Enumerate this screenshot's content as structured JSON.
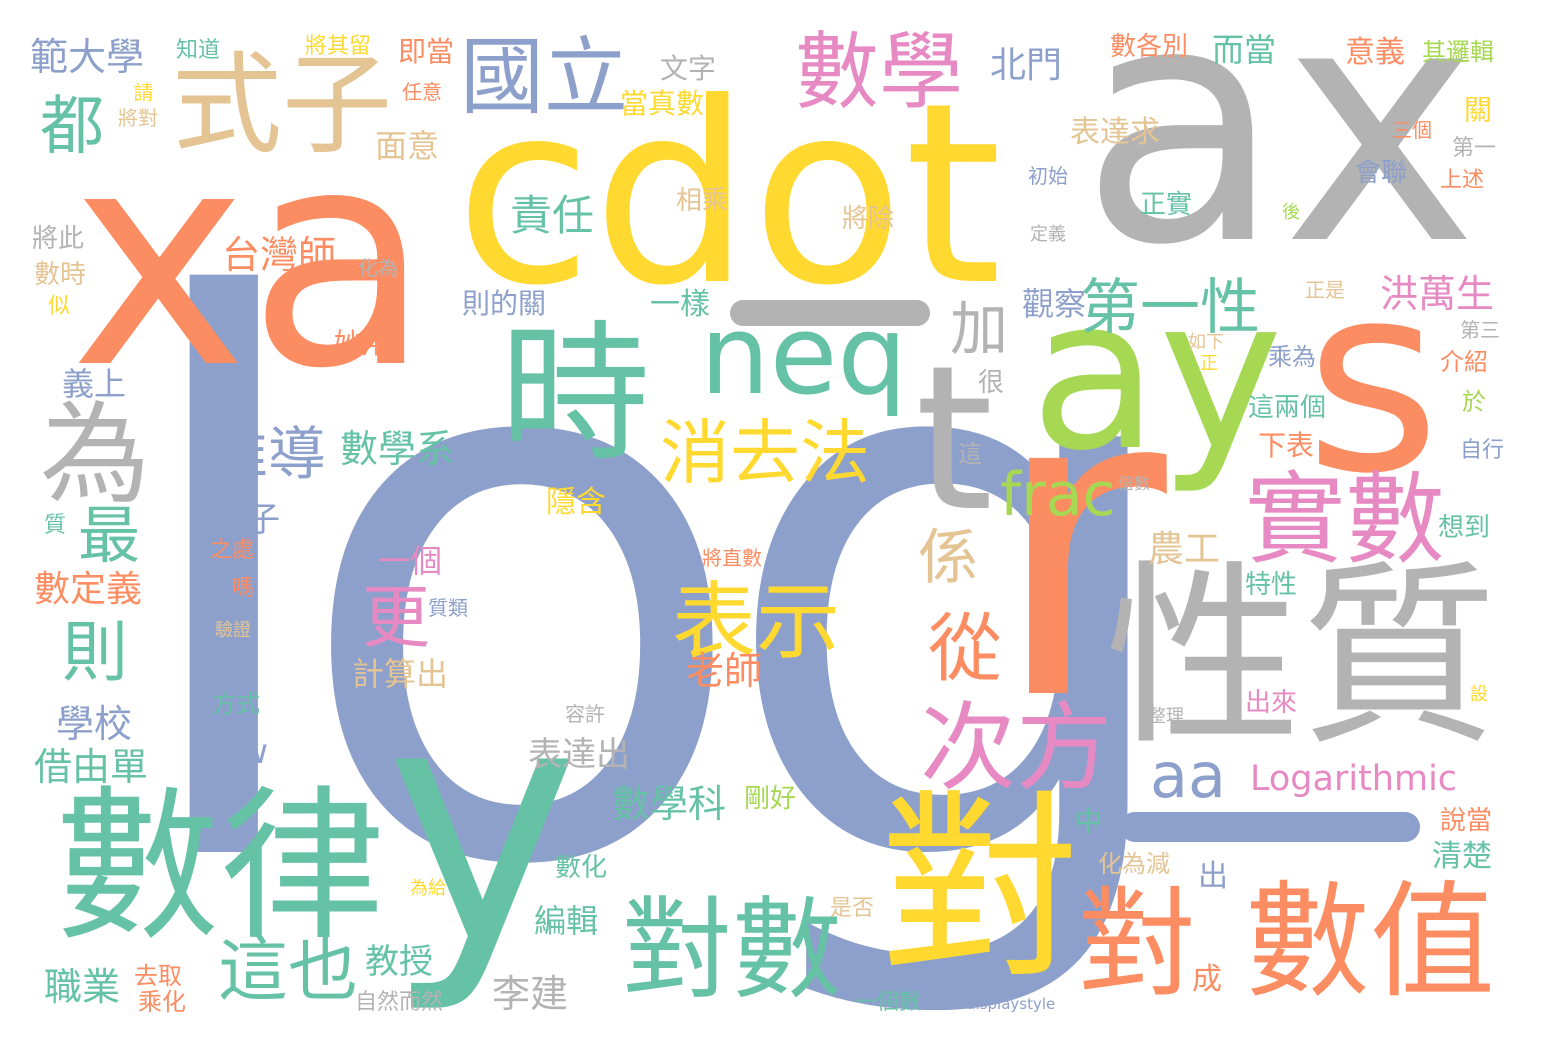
{
  "words": {
    "log": "log",
    "ax": "ax",
    "cdot": "cdot",
    "xa": "xa",
    "y": "y",
    "r": "r",
    "s": "s",
    "ay": "ay",
    "t": "t",
    "shuxingzhi": "性質",
    "shuxuelu": "數律",
    "dui_big": "對",
    "duishu": "對數",
    "dui2": "對",
    "shuzhi": "數值",
    "shi": "時",
    "shizi": "式子",
    "guoli": "國立",
    "shuxue": "數學",
    "neq": "neq",
    "wei": "為",
    "shishu": "實數",
    "cifang": "次方",
    "biaoshi": "表示",
    "xiaoqufa": "消去法",
    "diyixing": "第一性",
    "frac": "frac",
    "aa": "aa",
    "logarithmic": "Logarithmic",
    "zhe_ye": "這也",
    "tuidao": "推導",
    "geng": "更",
    "zui": "最",
    "ze": "則",
    "dou": "都",
    "cong": "從",
    "xi": "係",
    "jia": "加",
    "zeren": "責任",
    "taiwanshi": "台灣師",
    "shuxuexi": "數學系",
    "shuxueke": "數學科",
    "fandaxue": "範大學",
    "xuexiao": "學校",
    "jieyoudan": "借由單",
    "zhiye": "職業",
    "shudingyi": "數定義",
    "yishang": "義上",
    "liezi": "例子",
    "law": "law",
    "yige": "一個",
    "jisuanchu": "計算出",
    "laoshi": "老師",
    "biaodachu": "表達出",
    "jiaoshou": "教授",
    "lijian": "李建",
    "ziranerran": "自然而然",
    "yigeshu": "一個數",
    "bianji": "編輯",
    "shuhua": "數化",
    "nonggong": "農工",
    "yinhan": "隱含",
    "hongwansheng": "洪萬生",
    "guancha": "觀察",
    "yiyang": "一樣",
    "zedeguan": "則的關",
    "biaodaqiu": "表達求",
    "beimen": "北門",
    "erdang": "而當",
    "shugebie": "數各別",
    "yiyi": "意義",
    "qiluoji": "其邏輯",
    "wenzi": "文字",
    "dangzhenshu": "當真數",
    "mianyi": "面意",
    "jiangqiliu": "將其留",
    "jidang": "即當",
    "zhidao": "知道",
    "qing": "請",
    "jiangdui": "將對",
    "renyi": "任意",
    "xiangcheng": "相乘",
    "jiangchu": "將除",
    "chushi": "初始",
    "dingyi": "定義",
    "huilian": "會聯",
    "zhengshi": "正實",
    "hou": "後",
    "sange": "三個",
    "guan": "關",
    "diyi": "第一",
    "shangshu": "上述",
    "zhengshi2": "正是",
    "ruxia": "如下",
    "zheng": "正",
    "disan": "第三",
    "chengwei": "乘為",
    "jieshao": "介紹",
    "zheliangge": "這兩個",
    "yu": "於",
    "xiabiao": "下表",
    "zixing": "自行",
    "beishu": "倍數",
    "xiangdao": "想到",
    "texing": "特性",
    "chulai": "出來",
    "she": "設",
    "zhengli": "整理",
    "rongxu": "容許",
    "zhong": "中",
    "chu": "出",
    "huaweijian": "化為減",
    "lianggeshu": "兩個數",
    "qingchu": "清楚",
    "shuodang": "說當",
    "cheng": "成",
    "gangghao": "剛好",
    "shifou": "是否",
    "weigei": "為給",
    "displaystyle": "displaystyle",
    "quqiu": "去取",
    "chenghua": "乘化",
    "fangshi": "方式",
    "yanzheng": "驗證",
    "ma": "嗎",
    "zhichu": "之處",
    "zhi": "質",
    "zhilei": "質類",
    "jiangzhishu": "將直數",
    "henhen": "很",
    "zhe": "這",
    "miaoyong": "妙用",
    "jiangci": "將此",
    "shushi": "數時",
    "si": "似",
    "huawei": "化為"
  },
  "colors": {
    "blue": "#8da0cb",
    "orange": "#fc8d62",
    "green": "#66c2a5",
    "pink": "#e78ac3",
    "lime": "#a6d854",
    "yellow": "#ffd92f",
    "tan": "#e5c494",
    "gray": "#b3b3b3"
  }
}
